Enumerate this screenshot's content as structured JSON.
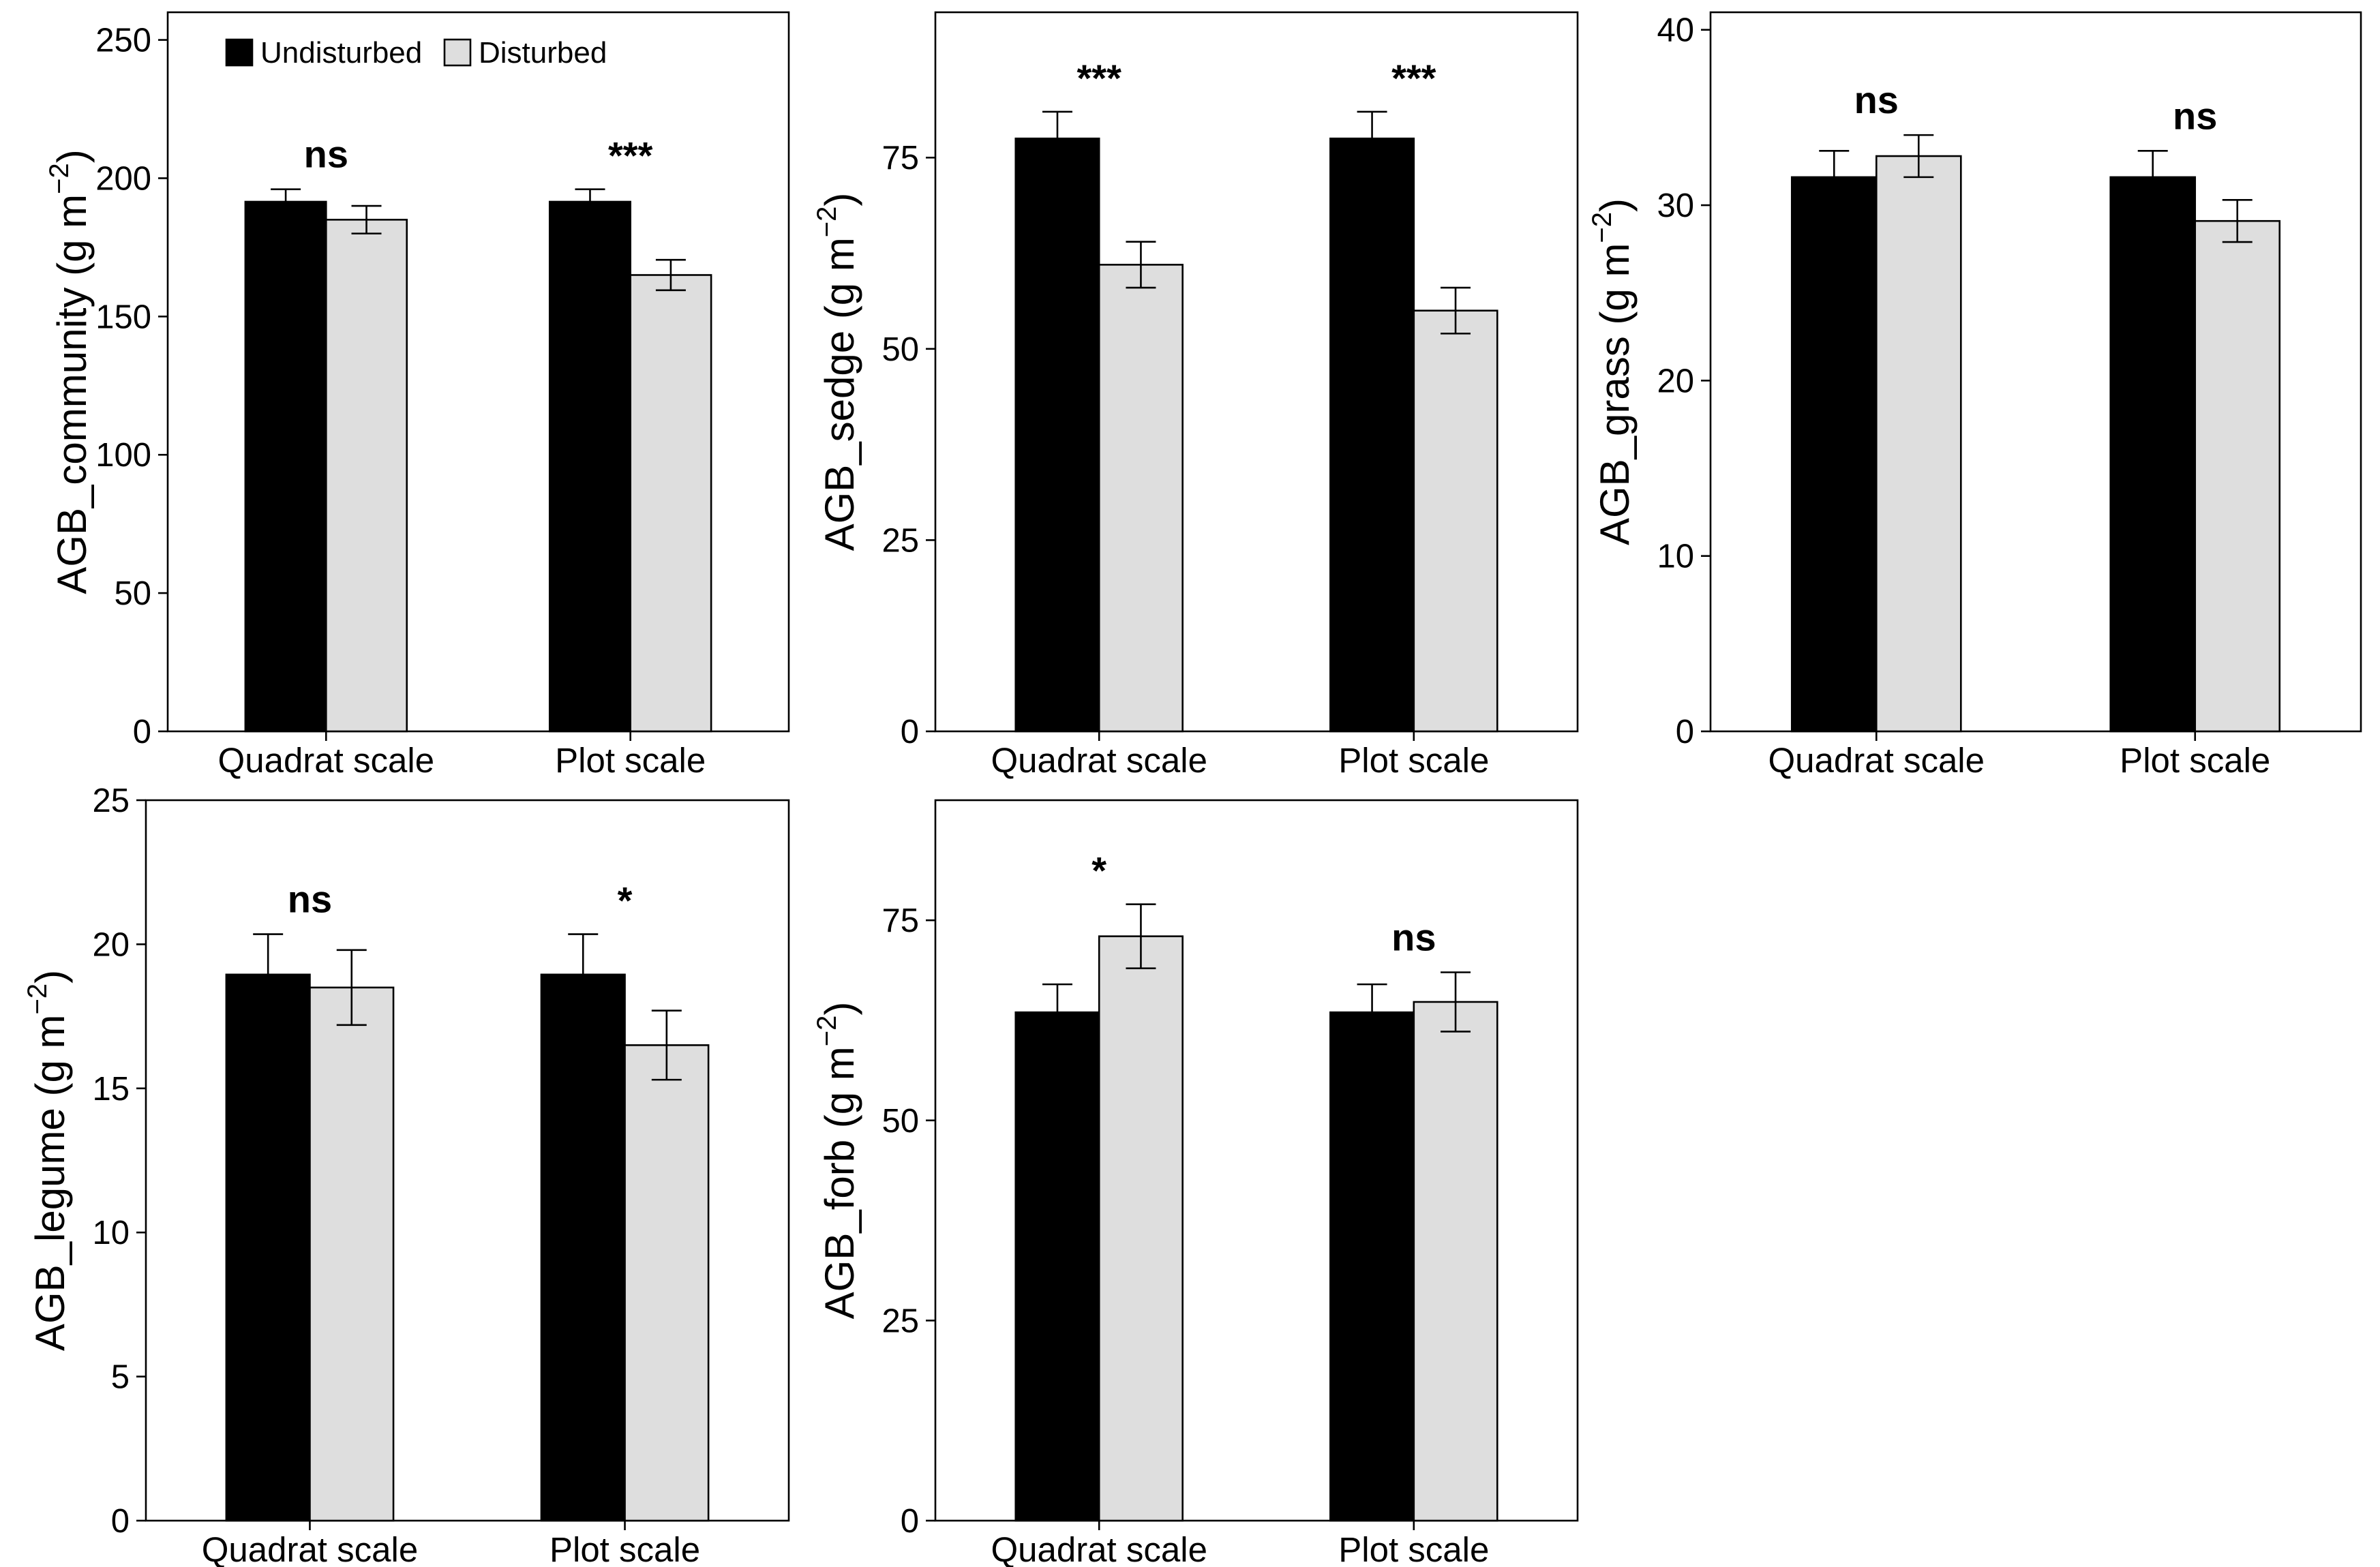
{
  "legend": {
    "undisturbed": "Undisturbed",
    "disturbed": "Disturbed"
  },
  "colors": {
    "undisturbed": "#000000",
    "disturbed": "#dedede"
  },
  "chart_data": [
    {
      "type": "bar",
      "ylabel_main": "AGB_community (g m",
      "ylabel_exp": "−2",
      "ylabel_close": ")",
      "ylim": [
        0,
        260
      ],
      "yticks": [
        0,
        50,
        100,
        150,
        200,
        250
      ],
      "categories": [
        "Quadrat scale",
        "Plot scale"
      ],
      "series": [
        {
          "name": "Undisturbed",
          "values": [
            191.5,
            191.5
          ],
          "errors": [
            4.5,
            4.5
          ]
        },
        {
          "name": "Disturbed",
          "values": [
            185,
            165
          ],
          "errors": [
            5,
            5.5
          ]
        }
      ],
      "significance": [
        "ns",
        "***"
      ],
      "legend_position": "top-left"
    },
    {
      "type": "bar",
      "ylabel_main": "AGB_sedge (g m",
      "ylabel_exp": "−2",
      "ylabel_close": ")",
      "ylim": [
        0,
        94
      ],
      "yticks": [
        0,
        25,
        50,
        75
      ],
      "categories": [
        "Quadrat scale",
        "Plot scale"
      ],
      "series": [
        {
          "name": "Undisturbed",
          "values": [
            77.5,
            77.5
          ],
          "errors": [
            3.5,
            3.5
          ]
        },
        {
          "name": "Disturbed",
          "values": [
            61,
            55
          ],
          "errors": [
            3,
            3
          ]
        }
      ],
      "significance": [
        "***",
        "***"
      ]
    },
    {
      "type": "bar",
      "ylabel_main": "AGB_grass (g m",
      "ylabel_exp": "−2",
      "ylabel_close": ")",
      "ylim": [
        0,
        41
      ],
      "yticks": [
        0,
        10,
        20,
        30,
        40
      ],
      "categories": [
        "Quadrat scale",
        "Plot scale"
      ],
      "series": [
        {
          "name": "Undisturbed",
          "values": [
            31.6,
            31.6
          ],
          "errors": [
            1.5,
            1.5
          ]
        },
        {
          "name": "Disturbed",
          "values": [
            32.8,
            29.1
          ],
          "errors": [
            1.2,
            1.2
          ]
        }
      ],
      "significance": [
        "ns",
        "ns"
      ]
    },
    {
      "type": "bar",
      "ylabel_main": "AGB_legume (g m",
      "ylabel_exp": "−2",
      "ylabel_close": ")",
      "ylim": [
        0,
        25
      ],
      "yticks": [
        0,
        5,
        10,
        15,
        20,
        25
      ],
      "categories": [
        "Quadrat scale",
        "Plot scale"
      ],
      "series": [
        {
          "name": "Undisturbed",
          "values": [
            18.95,
            18.95
          ],
          "errors": [
            1.4,
            1.4
          ]
        },
        {
          "name": "Disturbed",
          "values": [
            18.5,
            16.5
          ],
          "errors": [
            1.3,
            1.2
          ]
        }
      ],
      "significance": [
        "ns",
        "*"
      ]
    },
    {
      "type": "bar",
      "ylabel_main": "AGB_forb (g m",
      "ylabel_exp": "−2",
      "ylabel_close": ")",
      "ylim": [
        0,
        90
      ],
      "yticks": [
        0,
        25,
        50,
        75
      ],
      "categories": [
        "Quadrat scale",
        "Plot scale"
      ],
      "series": [
        {
          "name": "Undisturbed",
          "values": [
            63.5,
            63.5
          ],
          "errors": [
            3.5,
            3.5
          ]
        },
        {
          "name": "Disturbed",
          "values": [
            73,
            64.8
          ],
          "errors": [
            4,
            3.7
          ]
        }
      ],
      "significance": [
        "*",
        "ns"
      ]
    }
  ]
}
